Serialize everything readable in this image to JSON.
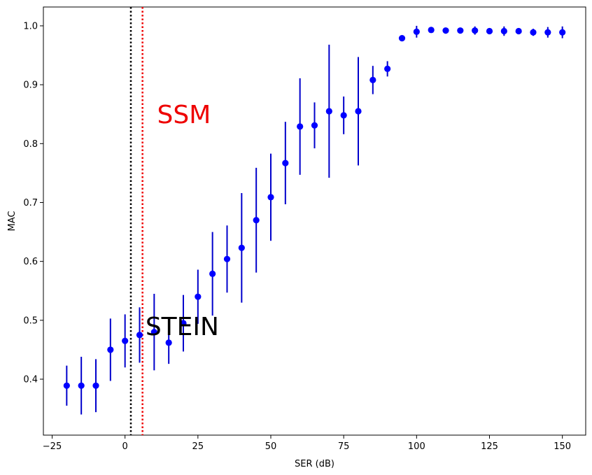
{
  "chart_data": {
    "type": "scatter",
    "xlabel": "SER (dB)",
    "ylabel": "MAC",
    "xlim": [
      -28,
      158
    ],
    "ylim": [
      0.305,
      1.032
    ],
    "xticks": [
      -25,
      0,
      25,
      50,
      75,
      100,
      125,
      150
    ],
    "yticks": [
      0.4,
      0.5,
      0.6,
      0.7,
      0.8,
      0.9,
      1.0
    ],
    "xtick_labels": [
      "−25",
      "0",
      "25",
      "50",
      "75",
      "100",
      "125",
      "150"
    ],
    "ytick_labels": [
      "0.4",
      "0.5",
      "0.6",
      "0.7",
      "0.8",
      "0.9",
      "1.0"
    ],
    "grid": false,
    "marker_color": "#0000ff",
    "errorbar_color": "#0000cc",
    "series": [
      {
        "x": [
          -20,
          -15,
          -10,
          -5,
          0,
          5,
          10,
          15,
          20,
          25,
          30,
          35,
          40,
          45,
          50,
          55,
          60,
          65,
          70,
          75,
          80,
          85,
          90,
          95,
          100,
          105,
          110,
          115,
          120,
          125,
          130,
          135,
          140,
          145,
          150
        ],
        "y": [
          0.389,
          0.389,
          0.389,
          0.45,
          0.465,
          0.475,
          0.48,
          0.462,
          0.495,
          0.54,
          0.579,
          0.604,
          0.623,
          0.67,
          0.709,
          0.767,
          0.829,
          0.831,
          0.855,
          0.848,
          0.855,
          0.908,
          0.927,
          0.979,
          0.99,
          0.993,
          0.992,
          0.992,
          0.992,
          0.991,
          0.991,
          0.991,
          0.989,
          0.989,
          0.989
        ],
        "err": [
          0.034,
          0.049,
          0.045,
          0.053,
          0.045,
          0.047,
          0.065,
          0.036,
          0.048,
          0.046,
          0.071,
          0.057,
          0.093,
          0.089,
          0.074,
          0.07,
          0.082,
          0.039,
          0.113,
          0.032,
          0.092,
          0.024,
          0.013,
          0.004,
          0.01,
          0.004,
          0.004,
          0.004,
          0.007,
          0.005,
          0.008,
          0.005,
          0.006,
          0.009,
          0.01
        ]
      }
    ],
    "vlines": [
      {
        "x": 2,
        "color": "#000000",
        "style": "dotted"
      },
      {
        "x": 6,
        "color": "#ee0000",
        "style": "dotted"
      }
    ],
    "annotations": [
      {
        "text": "SSM",
        "x": 11,
        "y": 0.835,
        "color": "#ee0000"
      },
      {
        "text": "STEIN",
        "x": 7,
        "y": 0.475,
        "color": "#000000"
      }
    ]
  }
}
